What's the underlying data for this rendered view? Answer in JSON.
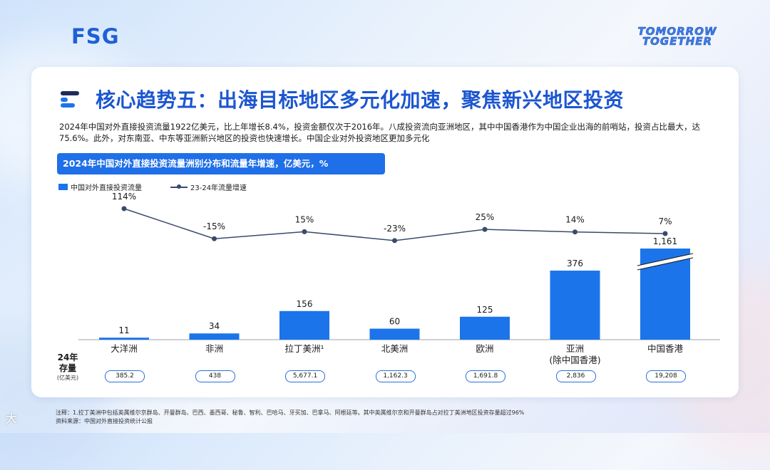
{
  "header": {
    "logo": "FSG",
    "brand_line1": "TOMORROW",
    "brand_line2": "TOGETHER"
  },
  "slide": {
    "title": "核心趋势五：出海目标地区多元化加速，聚焦新兴地区投资",
    "description": "2024年中国对外直接投资流量1922亿美元，比上年增长8.4%，投资金额仅次于2016年。八成投资流向亚洲地区，其中中国香港作为中国企业出海的前哨站，投资占比最大，达75.6%。此外，对东南亚、中东等亚洲新兴地区的投资也快速增长。中国企业对外投资地区更加多元化",
    "chart_header": "2024年中国对外直接投资流量洲别分布和流量年增速，亿美元，%",
    "stock_label_1": "24年",
    "stock_label_2": "存量",
    "stock_label_3": "(亿美元)",
    "footnote_1": "注释：1.拉丁美洲中包括英属维尔京群岛、开曼群岛、巴西、墨西哥、秘鲁、智利、巴哈马、牙买加、巴拿马、阿根廷等。其中英属维尔京和开曼群岛占对拉丁美洲地区投资存量超过96%",
    "footnote_2": "资料来源：中国对外直接投资统计公报",
    "watermark": "大"
  },
  "chart_data": {
    "type": "bar+line",
    "title": "2024年中国对外直接投资流量洲别分布和流量年增速，亿美元，%",
    "categories": [
      "大洋洲",
      "非洲",
      "拉丁美洲¹",
      "北美洲",
      "欧洲",
      "亚洲\n(除中国香港)",
      "中国香港"
    ],
    "category_lines": [
      [
        "大洋洲"
      ],
      [
        "非洲"
      ],
      [
        "拉丁美洲¹"
      ],
      [
        "北美洲"
      ],
      [
        "欧洲"
      ],
      [
        "亚洲",
        "(除中国香港)"
      ],
      [
        "中国香港"
      ]
    ],
    "series": [
      {
        "name": "中国对外直接投资流量",
        "type": "bar",
        "unit": "亿美元",
        "values": [
          11,
          34,
          156,
          60,
          125,
          376,
          1161
        ],
        "labels": [
          "11",
          "34",
          "156",
          "60",
          "125",
          "376",
          "1,161"
        ],
        "axis_break_on": "中国香港",
        "color": "#1c74ea"
      },
      {
        "name": "23-24年流量增速",
        "type": "line",
        "unit": "%",
        "values": [
          114,
          -15,
          15,
          -23,
          25,
          14,
          7
        ],
        "labels": [
          "114%",
          "-15%",
          "15%",
          "-23%",
          "25%",
          "14%",
          "7%"
        ],
        "color": "#3a4a6b"
      }
    ],
    "stock_2024": {
      "label": "24年存量(亿美元)",
      "values": [
        "385.2",
        "438",
        "5,677.1",
        "1,162.3",
        "1,691.8",
        "2,836",
        "19,208"
      ]
    }
  }
}
